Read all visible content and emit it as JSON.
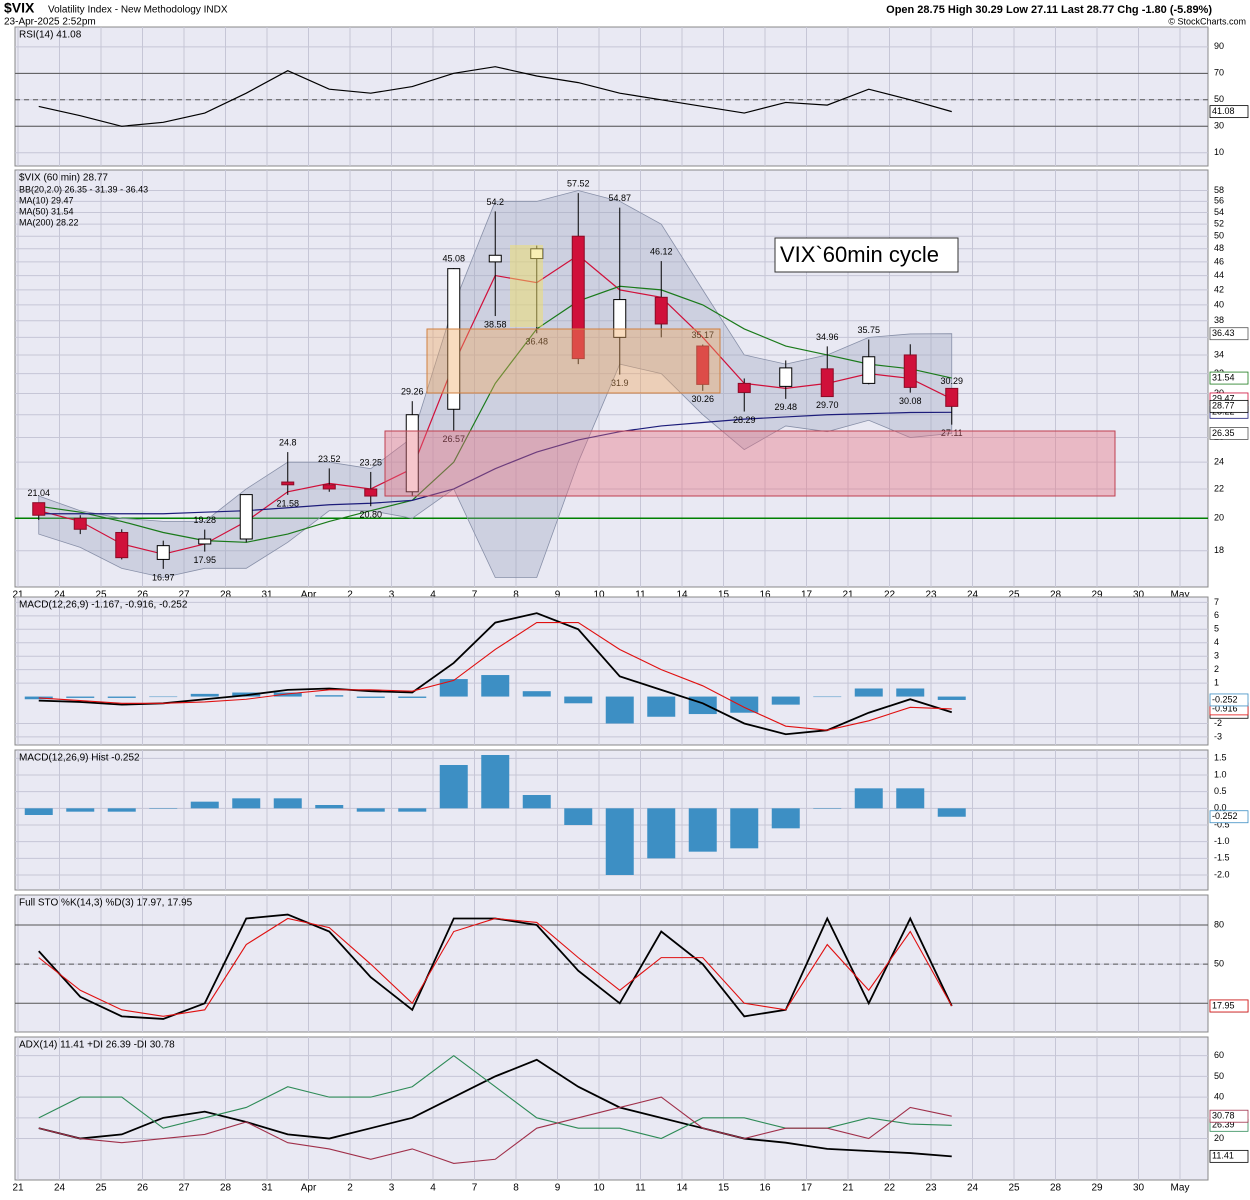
{
  "header": {
    "symbol": "$VIX",
    "name": "Volatility Index - New Methodology INDX",
    "timestamp": "23-Apr-2025 2:52pm",
    "quote": "Open 28.75  High 30.29  Low 27.11  Last 28.77  Chg -1.80 (-5.89%)",
    "credit": "© StockCharts.com"
  },
  "chart_data": [
    {
      "type": "line",
      "title": "RSI(14) 41.08",
      "color": "#000000",
      "ylim": [
        0,
        105
      ],
      "yticks": [
        10,
        30,
        50,
        70,
        90
      ],
      "reference_lines": [
        30,
        50,
        70
      ],
      "values": [
        45,
        38,
        30,
        33,
        40,
        55,
        72,
        58,
        55,
        60,
        70,
        75,
        68,
        63,
        55,
        50,
        45,
        40,
        48,
        46,
        58,
        50,
        41.08,
        null,
        null,
        null,
        null,
        null,
        null
      ]
    },
    {
      "type": "candlestick",
      "title": "$VIX (60 min) 28.77",
      "log_scale": true,
      "ylim": [
        16,
        62
      ],
      "yticks": [
        18,
        20,
        22,
        24,
        26,
        28,
        30,
        32,
        34,
        36,
        38,
        40,
        42,
        44,
        46,
        48,
        50,
        52,
        54,
        56,
        58
      ],
      "categories": [
        "21",
        "24",
        "25",
        "26",
        "27",
        "28",
        "31",
        "Apr",
        "2",
        "3",
        "4",
        "7",
        "8",
        "9",
        "10",
        "11",
        "14",
        "15",
        "16",
        "17",
        "21",
        "22",
        "23",
        "24",
        "25",
        "28",
        "29",
        "30",
        "May"
      ],
      "open": [
        21.04,
        20,
        19.1,
        17.5,
        18.4,
        18.7,
        22.5,
        22.3,
        22.0,
        21.8,
        28.5,
        46.0,
        46.5,
        50,
        36,
        41,
        35,
        31,
        30.7,
        32.5,
        31,
        34,
        30.5,
        null,
        null,
        null,
        null,
        null,
        null
      ],
      "high": [
        21.04,
        20.2,
        19.3,
        18.6,
        19.28,
        21.6,
        24.8,
        23.52,
        23.25,
        29.26,
        45.08,
        54.2,
        48.5,
        57.52,
        54.87,
        46.12,
        35.17,
        31.5,
        33.4,
        34.96,
        35.75,
        35.2,
        30.29,
        null,
        null,
        null,
        null,
        null,
        null
      ],
      "low": [
        19.9,
        19.0,
        17.5,
        16.97,
        17.95,
        18.5,
        21.58,
        21.8,
        20.8,
        21.5,
        26.57,
        38.58,
        36.48,
        33,
        31.9,
        36,
        30.26,
        28.29,
        29.48,
        29.7,
        30.9,
        30.08,
        27.11,
        null,
        null,
        null,
        null,
        null,
        null
      ],
      "close": [
        20.2,
        19.3,
        17.6,
        18.3,
        18.7,
        21.6,
        22.3,
        22.0,
        21.5,
        28.0,
        45.0,
        47.0,
        48.0,
        33.6,
        40.7,
        37.6,
        30.9,
        30.1,
        32.6,
        29.7,
        33.8,
        30.6,
        28.77,
        null,
        null,
        null,
        null,
        null,
        null
      ],
      "price_labels": [
        21.04,
        16.97,
        19.28,
        17.95,
        24.8,
        21.58,
        23.52,
        23.25,
        {
          "value": 20.8,
          "label": "20.80"
        },
        29.26,
        26.57,
        45.08,
        54.2,
        38.58,
        36.48,
        57.52,
        54.87,
        31.9,
        46.12,
        35.17,
        30.26,
        28.29,
        29.48,
        34.96,
        {
          "value": 29.7,
          "label": "29.70"
        },
        35.75,
        30.08,
        30.29,
        27.11
      ],
      "annotation": "VIX`60min cycle",
      "reference_lines": [
        {
          "value": 20,
          "color": "#008000"
        }
      ],
      "band": {
        "name": "BB(20,2.0) 26.35 - 31.39 - 36.43",
        "color": "#9aa3bd",
        "upper": [
          21.5,
          20.5,
          20.0,
          19.8,
          19.8,
          22,
          24,
          24,
          23.5,
          26,
          40,
          56,
          56,
          58,
          56,
          52,
          42,
          34,
          33,
          34,
          36,
          36.4,
          36.43,
          null,
          null,
          null,
          null,
          null,
          null
        ],
        "lower": [
          19,
          18.2,
          17,
          16.5,
          17,
          17,
          18.5,
          20.5,
          20.5,
          20,
          22,
          16.5,
          16.5,
          24,
          33,
          32,
          28,
          25,
          27,
          26.5,
          27.5,
          26,
          26.35,
          null,
          null,
          null,
          null,
          null,
          null
        ]
      },
      "series": [
        {
          "name": "MA(10) 29.47",
          "color": "#d0103a",
          "values": [
            20.5,
            19.8,
            18.4,
            17.8,
            18.4,
            19.8,
            21.8,
            22.4,
            22.0,
            23.5,
            33,
            44,
            43,
            47,
            42,
            41,
            36,
            31,
            30.5,
            31,
            32,
            31.5,
            29.47,
            null,
            null,
            null,
            null,
            null,
            null
          ]
        },
        {
          "name": "MA(50) 31.54",
          "color": "#1a7a1a",
          "values": [
            20.8,
            20.4,
            19.8,
            19.1,
            18.6,
            18.5,
            19.0,
            19.8,
            20.5,
            21.2,
            24,
            31,
            37,
            40.5,
            42.5,
            42,
            40,
            37,
            35,
            34,
            33,
            32.5,
            31.54,
            null,
            null,
            null,
            null,
            null,
            null
          ]
        },
        {
          "name": "MA(200) 28.22",
          "color": "#1c1c7a",
          "values": [
            20.3,
            20.3,
            20.3,
            20.3,
            20.4,
            20.5,
            20.7,
            20.9,
            21.0,
            21.2,
            22,
            23.5,
            24.8,
            25.8,
            26.5,
            27,
            27.3,
            27.6,
            27.8,
            28,
            28.1,
            28.2,
            28.22,
            null,
            null,
            null,
            null,
            null,
            null
          ]
        }
      ]
    },
    {
      "type": "line",
      "title": "MACD(12,26,9) -1.167, -0.916, -0.252",
      "ylim": [
        -3.6,
        7.4
      ],
      "yticks": [
        -3,
        -2,
        1,
        2,
        3,
        4,
        5,
        6,
        7
      ],
      "histogram_color": "#3d8fc4",
      "series": [
        {
          "color": "#000000",
          "values": [
            -0.3,
            -0.4,
            -0.6,
            -0.5,
            -0.2,
            0.1,
            0.5,
            0.6,
            0.4,
            0.3,
            2.5,
            5.5,
            6.2,
            5.0,
            1.5,
            0.5,
            -0.5,
            -2.0,
            -2.8,
            -2.5,
            -1.2,
            -0.2,
            -1.167,
            null,
            null,
            null,
            null,
            null,
            null
          ]
        },
        {
          "color": "#e01010",
          "values": [
            -0.1,
            -0.3,
            -0.5,
            -0.5,
            -0.4,
            -0.2,
            0.2,
            0.5,
            0.5,
            0.4,
            1.2,
            3.5,
            5.5,
            5.5,
            3.5,
            2.0,
            0.8,
            -0.8,
            -2.2,
            -2.5,
            -1.8,
            -0.8,
            -0.916,
            null,
            null,
            null,
            null,
            null,
            null
          ]
        }
      ]
    },
    {
      "type": "bar",
      "title": "MACD(12,26,9) Hist -0.252",
      "color": "#3d8fc4",
      "ylim": [
        -2.45,
        1.75
      ],
      "yticks": [
        1.5,
        {
          "value": 1,
          "label": "1.0"
        },
        0.5,
        {
          "value": 0,
          "label": "0.0"
        },
        -0.5,
        {
          "value": -1,
          "label": "-1.0"
        },
        -1.5,
        {
          "value": -2,
          "label": "-2.0"
        }
      ],
      "values": [
        -0.2,
        -0.1,
        -0.1,
        0,
        0.2,
        0.3,
        0.3,
        0.1,
        -0.1,
        -0.1,
        1.3,
        1.6,
        0.4,
        -0.5,
        -2.0,
        -1.5,
        -1.3,
        -1.2,
        -0.6,
        0,
        0.6,
        0.6,
        -0.252,
        null,
        null,
        null,
        null,
        null,
        null
      ]
    },
    {
      "type": "line",
      "title": "Full STO %K(14,3) %D(3) 17.97, 17.95",
      "ylim": [
        -2,
        103
      ],
      "yticks": [
        50,
        80
      ],
      "reference_lines": [
        20,
        50,
        80
      ],
      "series": [
        {
          "color": "#000000",
          "values": [
            60,
            25,
            10,
            8,
            20,
            85,
            88,
            75,
            40,
            15,
            85,
            85,
            80,
            45,
            20,
            75,
            50,
            10,
            15,
            85,
            20,
            85,
            17.97,
            null,
            null,
            null,
            null,
            null,
            null
          ]
        },
        {
          "color": "#e01010",
          "values": [
            55,
            30,
            15,
            10,
            15,
            65,
            85,
            78,
            50,
            20,
            75,
            85,
            82,
            55,
            30,
            55,
            55,
            20,
            15,
            65,
            30,
            75,
            17.95,
            null,
            null,
            null,
            null,
            null,
            null
          ]
        }
      ]
    },
    {
      "type": "line",
      "title": "ADX(14) 11.41 +DI 26.39 -DI 30.78",
      "ylim": [
        0,
        69
      ],
      "yticks": [
        20,
        30,
        40,
        50,
        60
      ],
      "categories": [
        "21",
        "24",
        "25",
        "26",
        "27",
        "28",
        "31",
        "Apr",
        "2",
        "3",
        "4",
        "7",
        "8",
        "9",
        "10",
        "11",
        "14",
        "15",
        "16",
        "17",
        "21",
        "22",
        "23",
        "24",
        "25",
        "28",
        "29",
        "30",
        "May"
      ],
      "series": [
        {
          "color": "#000000",
          "values": [
            25,
            20,
            22,
            30,
            33,
            28,
            22,
            20,
            25,
            30,
            40,
            50,
            58,
            45,
            35,
            30,
            25,
            20,
            18,
            15,
            14,
            13,
            11.41,
            null,
            null,
            null,
            null,
            null,
            null
          ]
        },
        {
          "color": "#2e8b57",
          "values": [
            30,
            40,
            40,
            25,
            30,
            35,
            45,
            40,
            40,
            45,
            60,
            45,
            30,
            25,
            25,
            20,
            30,
            30,
            25,
            25,
            30,
            27,
            26.39,
            null,
            null,
            null,
            null,
            null,
            null
          ]
        },
        {
          "color": "#a0304a",
          "values": [
            25,
            20,
            18,
            20,
            22,
            28,
            18,
            15,
            10,
            15,
            8,
            10,
            25,
            30,
            35,
            40,
            25,
            20,
            25,
            25,
            20,
            35,
            30.78,
            null,
            null,
            null,
            null,
            null,
            null
          ]
        }
      ]
    }
  ]
}
